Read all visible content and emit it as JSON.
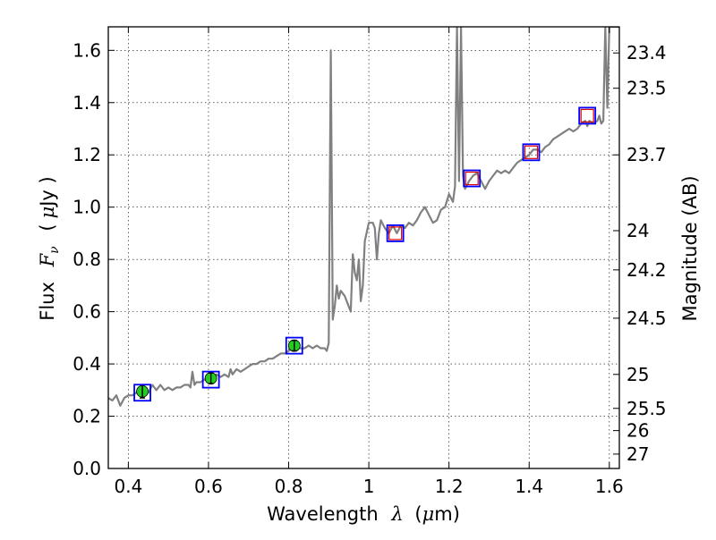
{
  "chart_data": {
    "type": "line",
    "x_axis": {
      "label_prefix": "Wavelength",
      "label_symbol": "λ",
      "label_unit_open": "(",
      "label_unit_mu": "μ",
      "label_unit_rest": "m)",
      "range": [
        0.35,
        1.625
      ],
      "ticks": [
        {
          "value": 0.4,
          "label": "0.4"
        },
        {
          "value": 0.6,
          "label": "0.6"
        },
        {
          "value": 0.8,
          "label": "0.8"
        },
        {
          "value": 1.0,
          "label": "1"
        },
        {
          "value": 1.2,
          "label": "1.2"
        },
        {
          "value": 1.4,
          "label": "1.4"
        },
        {
          "value": 1.6,
          "label": "1.6"
        }
      ]
    },
    "y_axis": {
      "label_prefix": "Flux",
      "label_symbol": "F",
      "label_subscript": "ν",
      "label_unit_open": "(",
      "label_unit_mu": "μ",
      "label_unit_rest": "Jy )",
      "range": [
        0.0,
        1.69
      ],
      "ticks": [
        {
          "value": 0.0,
          "label": "0.0"
        },
        {
          "value": 0.2,
          "label": "0.2"
        },
        {
          "value": 0.4,
          "label": "0.4"
        },
        {
          "value": 0.6,
          "label": "0.6"
        },
        {
          "value": 0.8,
          "label": "0.8"
        },
        {
          "value": 1.0,
          "label": "1.0"
        },
        {
          "value": 1.2,
          "label": "1.2"
        },
        {
          "value": 1.4,
          "label": "1.4"
        },
        {
          "value": 1.6,
          "label": "1.6"
        }
      ]
    },
    "y2_axis": {
      "label": "Magnitude (AB)",
      "tick_labels": [
        {
          "flux": 1.59,
          "label": "23.4"
        },
        {
          "flux": 1.455,
          "label": "23.5"
        },
        {
          "flux": 1.2,
          "label": "23.7"
        },
        {
          "flux": 0.91,
          "label": "24"
        },
        {
          "flux": 0.76,
          "label": "24.2"
        },
        {
          "flux": 0.575,
          "label": "24.5"
        },
        {
          "flux": 0.36,
          "label": "25"
        },
        {
          "flux": 0.23,
          "label": "25.5"
        },
        {
          "flux": 0.145,
          "label": "26"
        },
        {
          "flux": 0.055,
          "label": "27"
        }
      ]
    },
    "grid": true,
    "colors": {
      "spectrum": "#808080",
      "model_box": "#0000ff",
      "obs_upper_limit": "#dd0000",
      "obs_detection": "#22cc22",
      "errorbar": "#000000"
    },
    "series": [
      {
        "role": "model-spectrum",
        "points": [
          [
            0.35,
            0.27
          ],
          [
            0.36,
            0.26
          ],
          [
            0.37,
            0.28
          ],
          [
            0.38,
            0.24
          ],
          [
            0.39,
            0.27
          ],
          [
            0.4,
            0.28
          ],
          [
            0.41,
            0.28
          ],
          [
            0.42,
            0.29
          ],
          [
            0.43,
            0.3
          ],
          [
            0.44,
            0.31
          ],
          [
            0.45,
            0.29
          ],
          [
            0.46,
            0.32
          ],
          [
            0.47,
            0.3
          ],
          [
            0.48,
            0.32
          ],
          [
            0.49,
            0.3
          ],
          [
            0.5,
            0.31
          ],
          [
            0.51,
            0.3
          ],
          [
            0.52,
            0.31
          ],
          [
            0.53,
            0.31
          ],
          [
            0.54,
            0.32
          ],
          [
            0.55,
            0.32
          ],
          [
            0.555,
            0.31
          ],
          [
            0.56,
            0.37
          ],
          [
            0.565,
            0.32
          ],
          [
            0.57,
            0.33
          ],
          [
            0.58,
            0.33
          ],
          [
            0.59,
            0.34
          ],
          [
            0.6,
            0.35
          ],
          [
            0.61,
            0.34
          ],
          [
            0.62,
            0.36
          ],
          [
            0.63,
            0.35
          ],
          [
            0.64,
            0.36
          ],
          [
            0.65,
            0.35
          ],
          [
            0.655,
            0.38
          ],
          [
            0.66,
            0.36
          ],
          [
            0.67,
            0.38
          ],
          [
            0.68,
            0.37
          ],
          [
            0.69,
            0.38
          ],
          [
            0.7,
            0.39
          ],
          [
            0.71,
            0.4
          ],
          [
            0.72,
            0.4
          ],
          [
            0.73,
            0.41
          ],
          [
            0.74,
            0.41
          ],
          [
            0.75,
            0.42
          ],
          [
            0.76,
            0.42
          ],
          [
            0.77,
            0.43
          ],
          [
            0.78,
            0.44
          ],
          [
            0.79,
            0.44
          ],
          [
            0.8,
            0.45
          ],
          [
            0.81,
            0.46
          ],
          [
            0.82,
            0.46
          ],
          [
            0.83,
            0.46
          ],
          [
            0.84,
            0.46
          ],
          [
            0.85,
            0.47
          ],
          [
            0.86,
            0.46
          ],
          [
            0.87,
            0.47
          ],
          [
            0.88,
            0.46
          ],
          [
            0.89,
            0.46
          ],
          [
            0.895,
            0.45
          ],
          [
            0.9,
            0.48
          ],
          [
            0.905,
            1.6
          ],
          [
            0.91,
            0.57
          ],
          [
            0.915,
            0.62
          ],
          [
            0.92,
            0.7
          ],
          [
            0.925,
            0.65
          ],
          [
            0.93,
            0.68
          ],
          [
            0.94,
            0.66
          ],
          [
            0.95,
            0.62
          ],
          [
            0.955,
            0.6
          ],
          [
            0.96,
            0.82
          ],
          [
            0.965,
            0.75
          ],
          [
            0.97,
            0.72
          ],
          [
            0.975,
            0.8
          ],
          [
            0.98,
            0.64
          ],
          [
            0.985,
            0.7
          ],
          [
            0.99,
            0.87
          ],
          [
            1.0,
            0.94
          ],
          [
            1.01,
            0.94
          ],
          [
            1.015,
            0.92
          ],
          [
            1.02,
            0.8
          ],
          [
            1.025,
            0.9
          ],
          [
            1.03,
            0.95
          ],
          [
            1.04,
            0.92
          ],
          [
            1.05,
            0.9
          ],
          [
            1.06,
            0.93
          ],
          [
            1.07,
            0.9
          ],
          [
            1.08,
            0.93
          ],
          [
            1.09,
            0.92
          ],
          [
            1.1,
            0.94
          ],
          [
            1.11,
            0.93
          ],
          [
            1.12,
            0.95
          ],
          [
            1.13,
            0.98
          ],
          [
            1.14,
            1.0
          ],
          [
            1.15,
            0.97
          ],
          [
            1.16,
            0.94
          ],
          [
            1.17,
            0.95
          ],
          [
            1.18,
            0.99
          ],
          [
            1.19,
            1.0
          ],
          [
            1.2,
            1.05
          ],
          [
            1.21,
            1.02
          ],
          [
            1.215,
            1.08
          ],
          [
            1.22,
            1.69
          ],
          [
            1.225,
            1.1
          ],
          [
            1.23,
            1.69
          ],
          [
            1.235,
            1.12
          ],
          [
            1.24,
            1.07
          ],
          [
            1.25,
            1.1
          ],
          [
            1.26,
            1.12
          ],
          [
            1.27,
            1.13
          ],
          [
            1.28,
            1.1
          ],
          [
            1.29,
            1.07
          ],
          [
            1.3,
            1.1
          ],
          [
            1.31,
            1.12
          ],
          [
            1.32,
            1.14
          ],
          [
            1.33,
            1.13
          ],
          [
            1.34,
            1.14
          ],
          [
            1.35,
            1.13
          ],
          [
            1.36,
            1.15
          ],
          [
            1.37,
            1.17
          ],
          [
            1.38,
            1.18
          ],
          [
            1.39,
            1.19
          ],
          [
            1.4,
            1.2
          ],
          [
            1.41,
            1.22
          ],
          [
            1.42,
            1.22
          ],
          [
            1.43,
            1.21
          ],
          [
            1.44,
            1.23
          ],
          [
            1.45,
            1.24
          ],
          [
            1.46,
            1.26
          ],
          [
            1.47,
            1.27
          ],
          [
            1.48,
            1.28
          ],
          [
            1.49,
            1.29
          ],
          [
            1.5,
            1.3
          ],
          [
            1.51,
            1.29
          ],
          [
            1.52,
            1.3
          ],
          [
            1.53,
            1.32
          ],
          [
            1.54,
            1.33
          ],
          [
            1.545,
            1.31
          ],
          [
            1.55,
            1.33
          ],
          [
            1.56,
            1.32
          ],
          [
            1.57,
            1.33
          ],
          [
            1.575,
            1.35
          ],
          [
            1.58,
            1.32
          ],
          [
            1.585,
            1.33
          ],
          [
            1.59,
            1.69
          ],
          [
            1.595,
            1.38
          ],
          [
            1.6,
            1.69
          ],
          [
            1.61,
            1.69
          ],
          [
            1.625,
            1.69
          ]
        ]
      }
    ],
    "model_photometry": [
      {
        "x": 0.435,
        "y": 0.29
      },
      {
        "x": 0.606,
        "y": 0.34
      },
      {
        "x": 0.814,
        "y": 0.47
      },
      {
        "x": 1.066,
        "y": 0.9
      },
      {
        "x": 1.257,
        "y": 1.11
      },
      {
        "x": 1.405,
        "y": 1.21
      },
      {
        "x": 1.545,
        "y": 1.35
      }
    ],
    "observed_detections": [
      {
        "x": 0.435,
        "y": 0.295,
        "err": 0.025
      },
      {
        "x": 0.606,
        "y": 0.345,
        "err": 0.02
      },
      {
        "x": 0.814,
        "y": 0.47,
        "err": 0.02
      }
    ],
    "observed_upper_limits": [
      {
        "x": 1.066,
        "y": 0.9
      },
      {
        "x": 1.257,
        "y": 1.11
      },
      {
        "x": 1.405,
        "y": 1.21
      },
      {
        "x": 1.545,
        "y": 1.35
      }
    ]
  }
}
